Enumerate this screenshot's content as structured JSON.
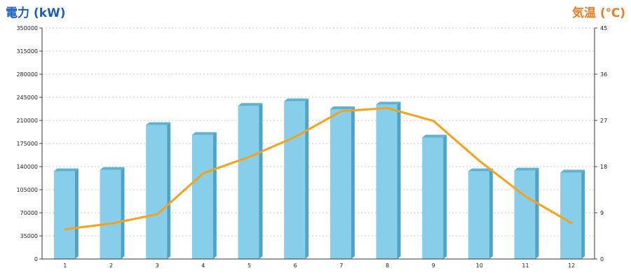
{
  "chart_data": {
    "type": "bar",
    "categories": [
      "1",
      "2",
      "3",
      "4",
      "5",
      "6",
      "7",
      "8",
      "9",
      "10",
      "11",
      "12"
    ],
    "series": [
      {
        "axis": "left",
        "type": "bar",
        "values": [
          133000,
          135000,
          203000,
          188000,
          232000,
          239000,
          227000,
          234000,
          184000,
          133000,
          134000,
          131000
        ],
        "color": "#87ceeb",
        "side_color": "#4fa3c4",
        "top_color": "#5fb2d0"
      },
      {
        "axis": "right",
        "type": "line",
        "values": [
          5.8,
          6.9,
          8.7,
          16.7,
          19.9,
          23.8,
          28.8,
          29.4,
          26.9,
          19.1,
          12.2,
          7.0
        ],
        "color": "#f7a21b"
      }
    ],
    "y_left": {
      "title": "電力 (kW)",
      "color": "#1a5fbf",
      "ylim": [
        0,
        350000
      ],
      "ticks": [
        "0",
        "35000",
        "70000",
        "105000",
        "140000",
        "175000",
        "210000",
        "245000",
        "280000",
        "315000",
        "350000"
      ]
    },
    "y_right": {
      "title": "気温 (℃)",
      "color": "#f07a1e",
      "ylim": [
        0,
        45
      ],
      "ticks": [
        "0",
        "9",
        "18",
        "27",
        "36",
        "45"
      ]
    },
    "xlabel": "",
    "grid": true
  }
}
